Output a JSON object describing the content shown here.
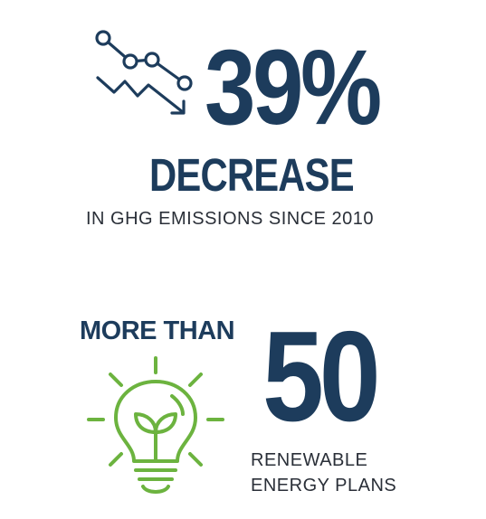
{
  "stat_1": {
    "value": "39%",
    "label": "DECREASE",
    "caption": "IN GHG EMISSIONS SINCE 2010",
    "icon": "decreasing-trend-icon"
  },
  "stat_2": {
    "prefix": "MORE THAN",
    "value": "50",
    "caption_line_1": "RENEWABLE",
    "caption_line_2": "ENERGY PLANS",
    "icon": "light-bulb-plant-icon"
  },
  "colors": {
    "navy": "#1d3c5c",
    "icon_blue": "#1d3c5c",
    "green": "#6cb33f",
    "caption_text": "#2a2f38",
    "background": "#ffffff"
  }
}
